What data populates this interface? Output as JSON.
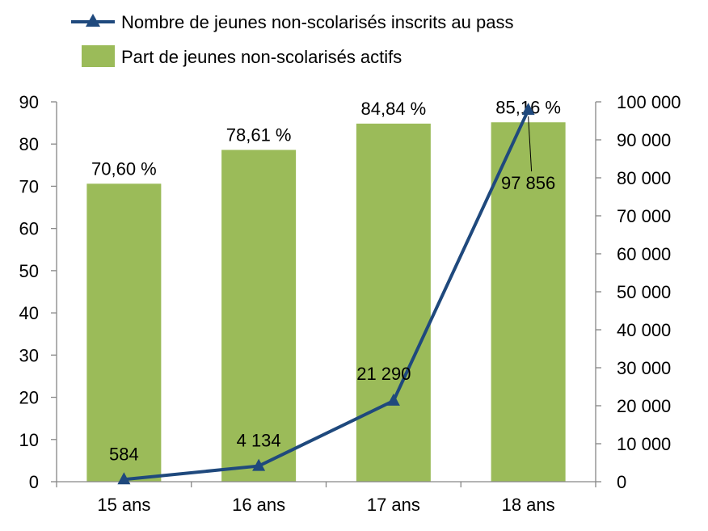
{
  "chart_data": {
    "type": "bar+line",
    "categories": [
      "15 ans",
      "16 ans",
      "17 ans",
      "18 ans"
    ],
    "bar_series": {
      "name": "Part de jeunes non-scolarisés actifs",
      "values": [
        70.6,
        78.61,
        84.84,
        85.16
      ],
      "labels": [
        "70,60 %",
        "78,61 %",
        "84,84 %",
        "85,16 %"
      ],
      "color": "#9BBB59",
      "axis": "left"
    },
    "line_series": {
      "name": "Nombre de jeunes non-scolarisés inscrits au pass",
      "values": [
        584,
        4134,
        21290,
        97856
      ],
      "labels": [
        "584",
        "4 134",
        "21 290",
        "97 856"
      ],
      "color": "#1F497D",
      "marker": "triangle",
      "axis": "right"
    },
    "y_left": {
      "min": 0,
      "max": 90,
      "step": 10,
      "tick_labels": [
        "0",
        "10",
        "20",
        "30",
        "40",
        "50",
        "60",
        "70",
        "80",
        "90"
      ]
    },
    "y_right": {
      "min": 0,
      "max": 100000,
      "step": 10000,
      "tick_labels": [
        "0",
        "10 000",
        "20 000",
        "30 000",
        "40 000",
        "50 000",
        "60 000",
        "70 000",
        "80 000",
        "90 000",
        "100 000"
      ]
    },
    "legend_position": "top",
    "grid": false
  }
}
